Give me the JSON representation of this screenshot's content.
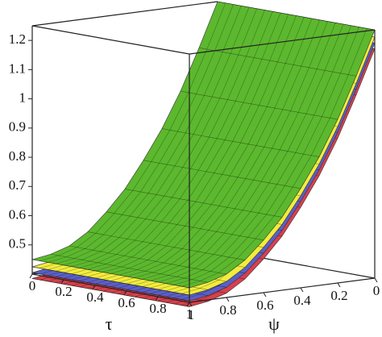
{
  "chart_data": {
    "type": "surface",
    "xlabel": "τ",
    "ylabel": "ψ",
    "xlim": [
      0,
      1
    ],
    "xticks": [
      0,
      0.2,
      0.4,
      0.6,
      0.8,
      1
    ],
    "ylim": [
      0,
      1
    ],
    "yticks": [
      0,
      0.2,
      0.4,
      0.6,
      0.8,
      1
    ],
    "zlim": [
      0.4,
      1.25
    ],
    "zticks": [
      0.5,
      0.6,
      0.7,
      0.8,
      0.9,
      1.0,
      1.1,
      1.2
    ],
    "y": [
      0,
      0.1,
      0.2,
      0.3,
      0.4,
      0.5,
      0.6,
      0.7,
      0.8,
      0.9,
      1
    ],
    "series": [
      {
        "color": "#d9404a",
        "values": [
          1.185,
          1.035,
          0.895,
          0.775,
          0.675,
          0.585,
          0.515,
          0.455,
          0.415,
          0.395,
          0.385
        ]
      },
      {
        "color": "#5a5fc8",
        "values": [
          1.205,
          1.055,
          0.915,
          0.795,
          0.695,
          0.605,
          0.535,
          0.475,
          0.435,
          0.415,
          0.405
        ]
      },
      {
        "color": "#f2ec3c",
        "values": [
          1.225,
          1.075,
          0.935,
          0.815,
          0.715,
          0.625,
          0.555,
          0.495,
          0.455,
          0.435,
          0.425
        ]
      },
      {
        "color": "#5cb82e",
        "values": [
          1.25,
          1.1,
          0.96,
          0.84,
          0.74,
          0.65,
          0.58,
          0.52,
          0.48,
          0.46,
          0.45
        ]
      }
    ]
  }
}
